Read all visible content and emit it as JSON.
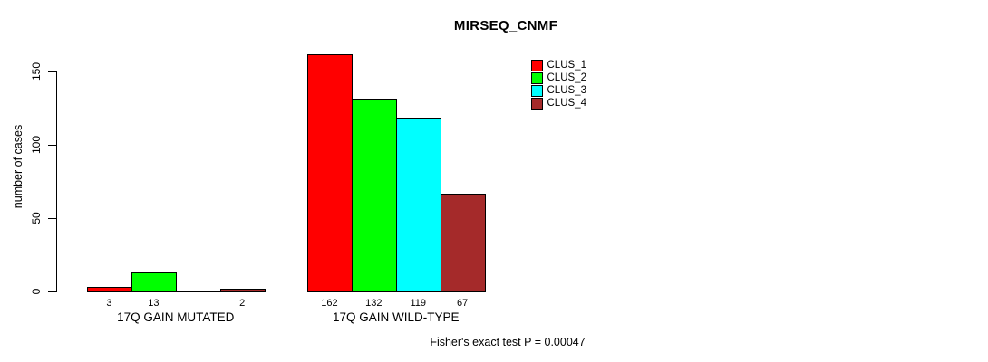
{
  "chart_data": {
    "type": "bar",
    "title": "MIRSEQ_CNMF",
    "ylabel": "number of cases",
    "xlabel": "",
    "yticks": [
      0,
      50,
      100,
      150
    ],
    "ylim": [
      0,
      168
    ],
    "grid": false,
    "legend_position": "upper-right",
    "series": [
      {
        "name": "CLUS_1",
        "color": "#FF0000"
      },
      {
        "name": "CLUS_2",
        "color": "#00FF00"
      },
      {
        "name": "CLUS_3",
        "color": "#00FFFF"
      },
      {
        "name": "CLUS_4",
        "color": "#A52A2A"
      }
    ],
    "categories": [
      "17Q GAIN MUTATED",
      "17Q GAIN WILD-TYPE"
    ],
    "groups": [
      {
        "label": "17Q GAIN MUTATED",
        "values": [
          3,
          13,
          0,
          2
        ],
        "bar_labels": [
          "3",
          "13",
          "",
          "2"
        ]
      },
      {
        "label": "17Q GAIN WILD-TYPE",
        "values": [
          162,
          132,
          119,
          67
        ],
        "bar_labels": [
          "162",
          "132",
          "119",
          "67"
        ]
      }
    ],
    "annotation": "Fisher's exact test P = 0.00047"
  }
}
